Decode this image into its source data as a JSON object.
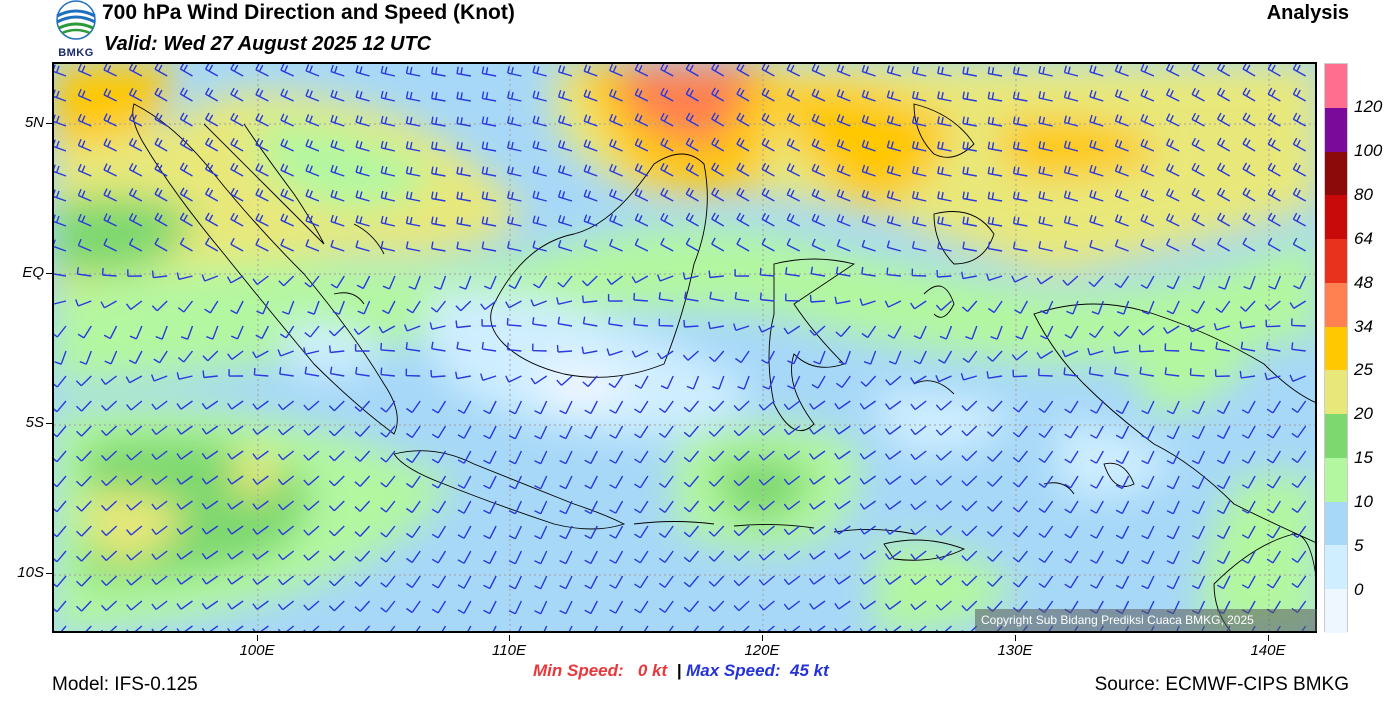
{
  "header": {
    "logo_text": "BMKG",
    "title": "700 hPa Wind Direction and Speed (Knot)",
    "valid": "Valid: Wed 27 August 2025 12 UTC",
    "mode": "Analysis"
  },
  "map": {
    "lat_labels": [
      "5N",
      "EQ",
      "5S",
      "10S"
    ],
    "lon_labels": [
      "100E",
      "110E",
      "120E",
      "130E",
      "140E"
    ],
    "copyright": "Copyright Sub Bidang Prediksi Cuaca BMKG, 2025"
  },
  "legend": {
    "labels": [
      "0",
      "5",
      "10",
      "15",
      "20",
      "25",
      "34",
      "48",
      "64",
      "80",
      "100",
      "120"
    ],
    "colors": [
      "#eef6ff",
      "#cfeeff",
      "#a7d8f8",
      "#b3f7a0",
      "#7ed870",
      "#e8e87a",
      "#ffc800",
      "#ff8050",
      "#e8321e",
      "#c80a0a",
      "#8c0a0a",
      "#7a0a9a",
      "#ff6e8e"
    ]
  },
  "footer": {
    "min_label": "Min Speed:",
    "min_value": "0 kt",
    "separator": "|",
    "max_label": "Max Speed:",
    "max_value": "45 kt",
    "model": "Model: IFS-0.125",
    "source": "Source: ECMWF-CIPS BMKG"
  },
  "colors": {
    "barb": "#2a38e0",
    "coast": "#000000",
    "grid": "#a0a0a0"
  }
}
